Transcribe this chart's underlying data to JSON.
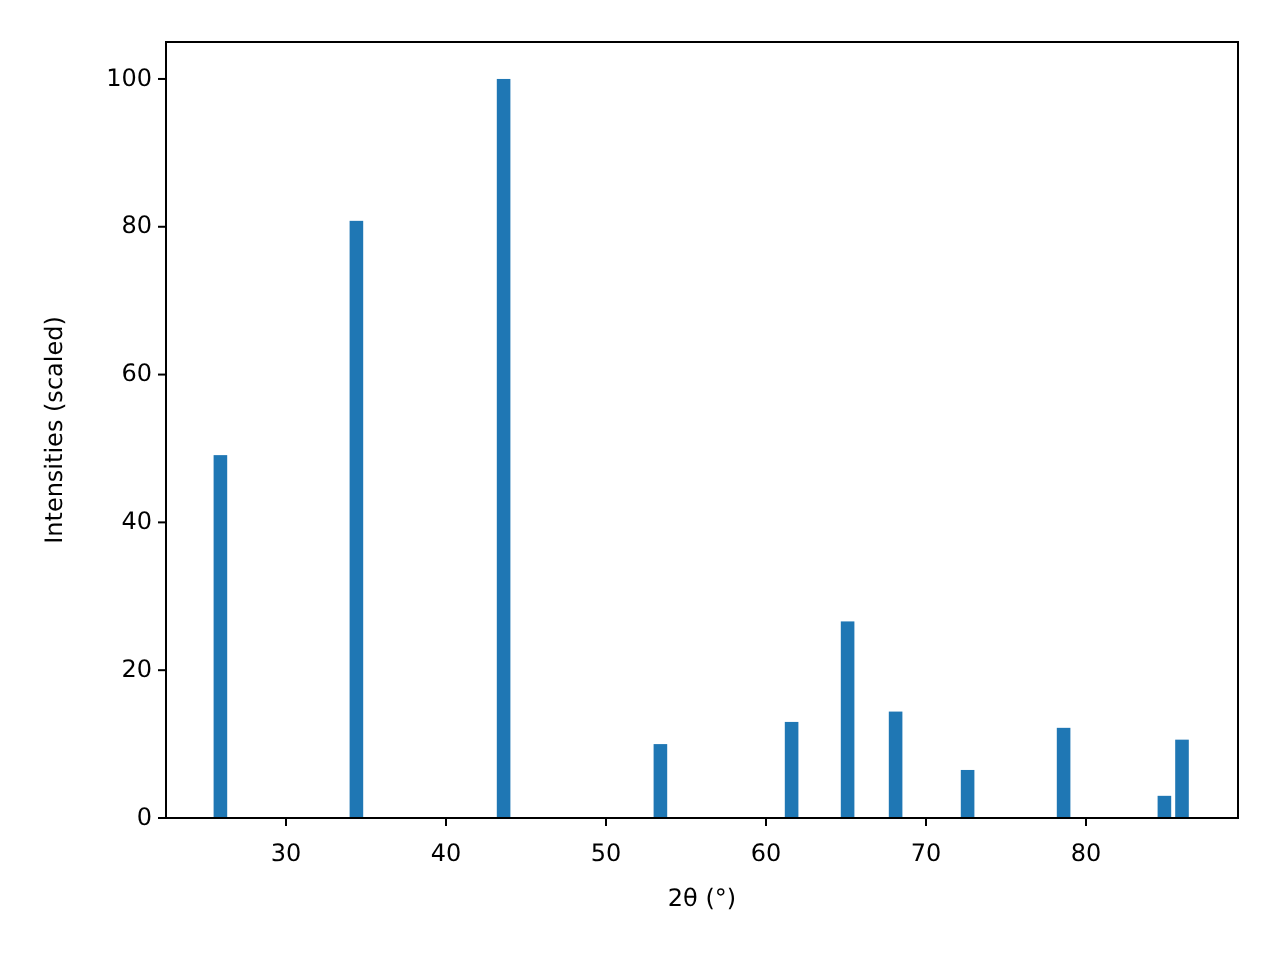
{
  "chart_data": {
    "type": "bar",
    "xlabel": "2θ (°)",
    "ylabel": "Intensities (scaled)",
    "x": [
      25.9,
      34.4,
      43.6,
      53.4,
      61.6,
      65.1,
      68.1,
      72.6,
      78.6,
      84.9,
      86.0
    ],
    "values": [
      49.1,
      80.8,
      100,
      10.0,
      13.0,
      26.6,
      14.4,
      6.5,
      12.2,
      3.0,
      10.6
    ],
    "color": "#1f77b4",
    "xlim": [
      22.5,
      89.5
    ],
    "xticks": [
      30,
      40,
      50,
      60,
      70,
      80
    ],
    "ylim": [
      0,
      105
    ],
    "yticks": [
      0,
      20,
      40,
      60,
      80,
      100
    ]
  }
}
